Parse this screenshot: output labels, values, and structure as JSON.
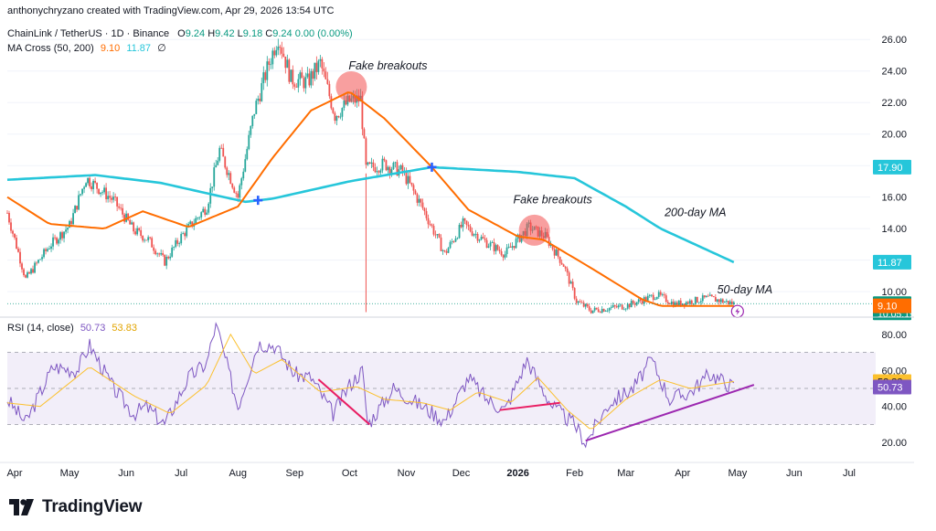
{
  "header": {
    "creator_line": "anthonychryzano created with TradingView.com, Apr 29, 2026 13:54 UTC",
    "symbol": "ChainLink / TetherUS · 1D · Binance",
    "ohlc": [
      {
        "k": "O",
        "v": "9.24"
      },
      {
        "k": "H",
        "v": "9.42"
      },
      {
        "k": "L",
        "v": "9.18"
      },
      {
        "k": "C",
        "v": "9.24"
      }
    ],
    "change": "0.00 (0.00%)",
    "ma_label": "MA Cross (50, 200)",
    "ma50_value": "9.10",
    "ma200_value": "11.87",
    "ma_symbol": "∅"
  },
  "rsi_header": {
    "label": "RSI (14, close)",
    "rsi_value": "50.73",
    "ma_value": "53.83"
  },
  "brand": {
    "name": "TradingView"
  },
  "colors": {
    "up": "#26a69a",
    "down": "#ef5350",
    "ma50": "#ff6d00",
    "ma200": "#26c6da",
    "rsi": "#7e57c2",
    "rsi_ma": "#fbc02d",
    "div_red": "#e91e63",
    "div_purple": "#9c27b0",
    "price_tag": "#089981"
  },
  "chart_data": [
    {
      "type": "candlestick",
      "title": "ChainLink / TetherUS · 1D · Binance",
      "ylim": [
        8.5,
        27
      ],
      "y_ticks": [
        10,
        12,
        14,
        16,
        18,
        20,
        22,
        24,
        26
      ],
      "y_tick_labels": [
        "10.00",
        "12.00",
        "14.00",
        "16.00",
        "18.00",
        "20.00",
        "22.00",
        "24.00",
        "26.00"
      ],
      "x_ticks": [
        "Apr",
        "May",
        "Jun",
        "Jul",
        "Aug",
        "Sep",
        "Oct",
        "Nov",
        "Dec",
        "2026",
        "Feb",
        "Mar",
        "Apr",
        "May",
        "Jun",
        "Jul"
      ],
      "close_anchors": [
        [
          "2025-03-28",
          15.0
        ],
        [
          "2025-04-07",
          10.8
        ],
        [
          "2025-04-20",
          12.9
        ],
        [
          "2025-05-01",
          14.2
        ],
        [
          "2025-05-10",
          17.2
        ],
        [
          "2025-05-25",
          15.8
        ],
        [
          "2025-06-05",
          13.9
        ],
        [
          "2025-06-13",
          13.3
        ],
        [
          "2025-06-22",
          11.9
        ],
        [
          "2025-07-01",
          13.5
        ],
        [
          "2025-07-15",
          15.4
        ],
        [
          "2025-07-22",
          19.0
        ],
        [
          "2025-08-01",
          16.0
        ],
        [
          "2025-08-10",
          21.5
        ],
        [
          "2025-08-18",
          24.5
        ],
        [
          "2025-08-23",
          26.2
        ],
        [
          "2025-08-30",
          23.5
        ],
        [
          "2025-09-08",
          23.3
        ],
        [
          "2025-09-15",
          24.5
        ],
        [
          "2025-09-23",
          21.2
        ],
        [
          "2025-10-01",
          22.1
        ],
        [
          "2025-10-07",
          22.2
        ],
        [
          "2025-10-10",
          17.8
        ],
        [
          "2025-10-20",
          18.1
        ],
        [
          "2025-10-30",
          17.6
        ],
        [
          "2025-11-10",
          15.3
        ],
        [
          "2025-11-22",
          12.4
        ],
        [
          "2025-12-02",
          14.3
        ],
        [
          "2025-12-15",
          13.1
        ],
        [
          "2025-12-25",
          12.4
        ],
        [
          "2026-01-07",
          14.1
        ],
        [
          "2026-01-16",
          13.5
        ],
        [
          "2026-01-26",
          11.7
        ],
        [
          "2026-02-02",
          9.4
        ],
        [
          "2026-02-10",
          8.8
        ],
        [
          "2026-03-01",
          9.1
        ],
        [
          "2026-03-18",
          9.8
        ],
        [
          "2026-03-28",
          9.2
        ],
        [
          "2026-04-15",
          9.6
        ],
        [
          "2026-04-29",
          9.24
        ]
      ],
      "flash_crash": {
        "date": "2025-10-10",
        "low": 8.7
      },
      "ma50": {
        "name": "50-day MA",
        "anchors": [
          [
            "2025-03-28",
            16.0
          ],
          [
            "2025-04-20",
            14.3
          ],
          [
            "2025-05-20",
            14.0
          ],
          [
            "2025-06-10",
            15.1
          ],
          [
            "2025-07-05",
            14.1
          ],
          [
            "2025-08-01",
            15.4
          ],
          [
            "2025-08-20",
            18.5
          ],
          [
            "2025-09-10",
            21.5
          ],
          [
            "2025-10-01",
            22.7
          ],
          [
            "2025-10-20",
            21.0
          ],
          [
            "2025-11-15",
            17.9
          ],
          [
            "2025-12-05",
            15.2
          ],
          [
            "2026-01-01",
            13.5
          ],
          [
            "2026-01-15",
            13.3
          ],
          [
            "2026-02-10",
            11.5
          ],
          [
            "2026-03-10",
            9.5
          ],
          [
            "2026-03-20",
            9.1
          ],
          [
            "2026-04-29",
            9.1
          ]
        ]
      },
      "ma200": {
        "name": "200-day MA",
        "anchors": [
          [
            "2025-03-28",
            17.1
          ],
          [
            "2025-05-15",
            17.4
          ],
          [
            "2025-06-20",
            16.9
          ],
          [
            "2025-08-05",
            15.7
          ],
          [
            "2025-08-20",
            15.9
          ],
          [
            "2025-10-01",
            17.0
          ],
          [
            "2025-11-15",
            17.9
          ],
          [
            "2026-01-01",
            17.6
          ],
          [
            "2026-02-01",
            17.2
          ],
          [
            "2026-03-01",
            15.4
          ],
          [
            "2026-03-20",
            14.0
          ],
          [
            "2026-04-29",
            11.87
          ]
        ]
      },
      "crosses": [
        {
          "date": "2025-08-12",
          "value": 15.8
        },
        {
          "date": "2025-11-15",
          "value": 17.9
        }
      ],
      "annotations": [
        {
          "text": "Fake breakouts",
          "date": "2025-10-22",
          "value": 24.1
        },
        {
          "text": "Fake breakouts",
          "date": "2026-01-20",
          "value": 15.6
        },
        {
          "text": "200-day MA",
          "date": "2026-04-08",
          "value": 14.8
        },
        {
          "text": "50-day MA",
          "date": "2026-05-05",
          "value": 9.9
        }
      ],
      "highlight_circles": [
        {
          "date": "2025-10-02",
          "value": 23.0
        },
        {
          "date": "2026-01-10",
          "value": 13.9
        }
      ],
      "price_labels": [
        {
          "text": "26.00",
          "value": 26.0
        }
      ],
      "price_tags": [
        {
          "text": "17.90",
          "value": 17.9,
          "color": "#26c6da"
        },
        {
          "text": "11.87",
          "value": 11.87,
          "color": "#26c6da"
        },
        {
          "text": "9.24",
          "sub": "10:05:19",
          "value": 9.24,
          "color": "#089981"
        },
        {
          "text": "9.10",
          "value": 9.1,
          "color": "#ff6d00"
        }
      ],
      "lightning_icon": "lightning-icon"
    },
    {
      "type": "line",
      "title": "RSI (14, close)",
      "ylim": [
        12,
        88
      ],
      "y_ticks": [
        20,
        40,
        60,
        80
      ],
      "y_tick_labels": [
        "20.00",
        "40.00",
        "60.00",
        "80.00"
      ],
      "band": [
        30,
        70
      ],
      "rsi_anchors": [
        [
          "2025-03-28",
          44
        ],
        [
          "2025-04-07",
          31
        ],
        [
          "2025-04-22",
          62
        ],
        [
          "2025-05-05",
          60
        ],
        [
          "2025-05-12",
          74
        ],
        [
          "2025-05-25",
          50
        ],
        [
          "2025-06-05",
          36
        ],
        [
          "2025-06-12",
          40
        ],
        [
          "2025-06-22",
          30
        ],
        [
          "2025-07-05",
          56
        ],
        [
          "2025-07-15",
          64
        ],
        [
          "2025-07-20",
          86
        ],
        [
          "2025-08-01",
          40
        ],
        [
          "2025-08-12",
          75
        ],
        [
          "2025-08-21",
          74
        ],
        [
          "2025-09-01",
          58
        ],
        [
          "2025-09-10",
          56
        ],
        [
          "2025-09-22",
          36
        ],
        [
          "2025-10-01",
          52
        ],
        [
          "2025-10-08",
          60
        ],
        [
          "2025-10-11",
          30
        ],
        [
          "2025-10-25",
          50
        ],
        [
          "2025-11-10",
          40
        ],
        [
          "2025-11-22",
          32
        ],
        [
          "2025-12-05",
          56
        ],
        [
          "2025-12-15",
          44
        ],
        [
          "2025-12-25",
          38
        ],
        [
          "2026-01-06",
          66
        ],
        [
          "2026-01-12",
          54
        ],
        [
          "2026-01-20",
          40
        ],
        [
          "2026-02-01",
          30
        ],
        [
          "2026-02-07",
          20
        ],
        [
          "2026-02-20",
          42
        ],
        [
          "2026-03-05",
          50
        ],
        [
          "2026-03-15",
          66
        ],
        [
          "2026-03-25",
          44
        ],
        [
          "2026-04-05",
          48
        ],
        [
          "2026-04-16",
          58
        ],
        [
          "2026-04-29",
          50.73
        ]
      ],
      "rsi_ma_anchors": [
        [
          "2025-03-28",
          42
        ],
        [
          "2025-04-15",
          40
        ],
        [
          "2025-05-12",
          62
        ],
        [
          "2025-06-05",
          46
        ],
        [
          "2025-06-25",
          36
        ],
        [
          "2025-07-15",
          52
        ],
        [
          "2025-07-28",
          80
        ],
        [
          "2025-08-10",
          58
        ],
        [
          "2025-08-25",
          66
        ],
        [
          "2025-09-15",
          48
        ],
        [
          "2025-10-05",
          51
        ],
        [
          "2025-10-20",
          44
        ],
        [
          "2025-11-10",
          42
        ],
        [
          "2025-11-25",
          38
        ],
        [
          "2025-12-10",
          48
        ],
        [
          "2025-12-28",
          42
        ],
        [
          "2026-01-12",
          56
        ],
        [
          "2026-01-28",
          38
        ],
        [
          "2026-02-10",
          27
        ],
        [
          "2026-03-01",
          44
        ],
        [
          "2026-03-20",
          55
        ],
        [
          "2026-04-05",
          50
        ],
        [
          "2026-04-29",
          53.83
        ]
      ],
      "divergence_lines": [
        {
          "from": [
            "2025-09-14",
            55
          ],
          "to": [
            "2025-10-12",
            30
          ],
          "color": "#e91e63"
        },
        {
          "from": [
            "2025-12-22",
            38
          ],
          "to": [
            "2026-01-24",
            42
          ],
          "color": "#e91e63"
        },
        {
          "from": [
            "2026-02-07",
            21
          ],
          "to": [
            "2026-05-10",
            52
          ],
          "color": "#9c27b0"
        }
      ],
      "value_tags": [
        {
          "text": "53.83",
          "value": 53.83,
          "color": "#fbc02d"
        },
        {
          "text": "50.73",
          "value": 50.73,
          "color": "#7e57c2"
        }
      ]
    }
  ]
}
